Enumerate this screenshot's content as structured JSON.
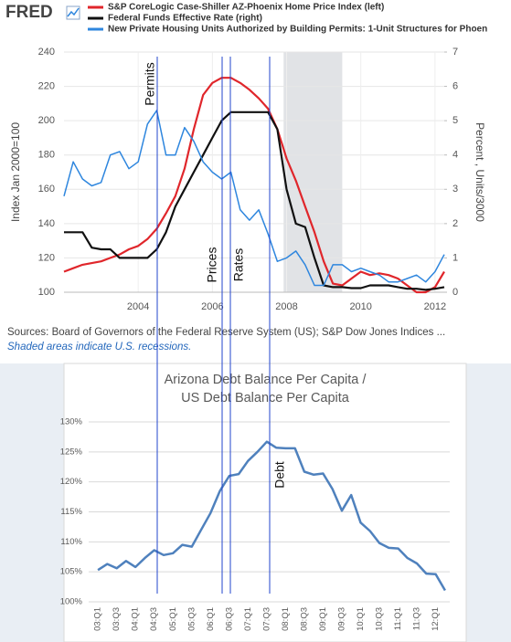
{
  "chart_data": [
    {
      "type": "line",
      "logo": "FRED",
      "y_label": "Index Jan 2000=100",
      "y2_label": "Percent , Units/3000",
      "source": "Sources: Board of Governors of the Federal Reserve System (US); S&P Dow Jones Indices ...",
      "note": "Shaded areas indicate U.S. recessions.",
      "annotations": [
        "Permits",
        "Prices",
        "Rates"
      ],
      "shaded": [
        {
          "start": 2007.92,
          "end": 2009.5
        }
      ],
      "x": [
        2002.0,
        2002.25,
        2002.5,
        2002.75,
        2003.0,
        2003.25,
        2003.5,
        2003.75,
        2004.0,
        2004.25,
        2004.5,
        2004.75,
        2005.0,
        2005.25,
        2005.5,
        2005.75,
        2006.0,
        2006.25,
        2006.5,
        2006.75,
        2007.0,
        2007.25,
        2007.5,
        2007.75,
        2008.0,
        2008.25,
        2008.5,
        2008.75,
        2009.0,
        2009.25,
        2009.5,
        2009.75,
        2010.0,
        2010.25,
        2010.5,
        2010.75,
        2011.0,
        2011.25,
        2011.5,
        2011.75,
        2012.0,
        2012.25
      ],
      "xlim": [
        2002,
        2012.25
      ],
      "xticks": [
        2004,
        2006,
        2008,
        2010,
        2012
      ],
      "ylim": [
        100,
        240
      ],
      "yticks": [
        100,
        120,
        140,
        160,
        180,
        200,
        220,
        240
      ],
      "y2lim": [
        0,
        7
      ],
      "y2ticks": [
        0,
        1,
        2,
        3,
        4,
        5,
        6,
        7
      ],
      "grid": true,
      "series": [
        {
          "name": "S&P CoreLogic Case-Shiller AZ-Phoenix Home Price Index (left)",
          "color": "#e0262b",
          "values": [
            112,
            114,
            116,
            117,
            118,
            120,
            122,
            125,
            127,
            131,
            137,
            146,
            156,
            172,
            195,
            215,
            222,
            225,
            225,
            222,
            218,
            213,
            207,
            195,
            178,
            165,
            150,
            135,
            118,
            105,
            104,
            108,
            112,
            110,
            111,
            110,
            108,
            104,
            100,
            100,
            103,
            112
          ]
        },
        {
          "name": "Federal Funds Effective Rate (right)",
          "color": "#111111",
          "axis": "y2",
          "values": [
            1.75,
            1.75,
            1.75,
            1.3,
            1.25,
            1.25,
            1.0,
            1.0,
            1.0,
            1.0,
            1.25,
            1.75,
            2.5,
            3.0,
            3.5,
            4.0,
            4.5,
            5.0,
            5.25,
            5.25,
            5.25,
            5.25,
            5.25,
            4.75,
            3.0,
            2.0,
            1.9,
            1.0,
            0.2,
            0.15,
            0.15,
            0.12,
            0.12,
            0.2,
            0.2,
            0.2,
            0.15,
            0.1,
            0.1,
            0.07,
            0.1,
            0.15
          ]
        },
        {
          "name": "New Private Housing Units Authorized by Building Permits: 1-Unit Structures for Phoen",
          "color": "#2e86de",
          "axis": "y2",
          "values": [
            2.8,
            3.8,
            3.3,
            3.1,
            3.2,
            4.0,
            4.1,
            3.6,
            3.8,
            4.9,
            5.3,
            4.0,
            4.0,
            4.8,
            4.4,
            3.8,
            3.5,
            3.3,
            3.5,
            2.4,
            2.1,
            2.4,
            1.7,
            0.9,
            1.0,
            1.2,
            0.8,
            0.2,
            0.2,
            0.8,
            0.8,
            0.6,
            0.7,
            0.6,
            0.5,
            0.3,
            0.3,
            0.4,
            0.5,
            0.3,
            0.6,
            1.1
          ]
        }
      ]
    },
    {
      "type": "line",
      "title": [
        "Arizona Debt Balance Per Capita /",
        "US Debt Balance Per Capita"
      ],
      "annotations": [
        "Debt"
      ],
      "categories": [
        "03:Q1",
        null,
        "03:Q3",
        null,
        "04:Q1",
        null,
        "04:Q3",
        null,
        "05:Q1",
        null,
        "05:Q3",
        null,
        "06:Q1",
        null,
        "06:Q3",
        null,
        "07:Q1",
        null,
        "07:Q3",
        null,
        "08:Q1",
        null,
        "08:Q3",
        null,
        "09:Q1",
        null,
        "09:Q3",
        null,
        "10:Q1",
        null,
        "10:Q3",
        null,
        "11:Q1",
        null,
        "11:Q3",
        null,
        "12:Q1",
        null
      ],
      "ylim": [
        100,
        130
      ],
      "yticks": [
        {
          "value": 100,
          "label": "100%"
        },
        {
          "value": 105,
          "label": "105%"
        },
        {
          "value": 110,
          "label": "110%"
        },
        {
          "value": 115,
          "label": "115%"
        },
        {
          "value": 120,
          "label": "120%"
        },
        {
          "value": 125,
          "label": "125%"
        },
        {
          "value": 130,
          "label": "130%"
        }
      ],
      "grid": true,
      "series": [
        {
          "color": "#4f81bd",
          "values": [
            105.3,
            106.3,
            105.6,
            106.8,
            105.8,
            107.3,
            108.6,
            107.8,
            108.1,
            109.5,
            109.2,
            112,
            114.8,
            118.5,
            121,
            121.3,
            123.5,
            125,
            126.7,
            125.7,
            125.6,
            125.6,
            121.7,
            121.2,
            121.4,
            118.8,
            115.2,
            117.8,
            113.2,
            111.8,
            109.8,
            109,
            108.9,
            107.3,
            106.4,
            104.7,
            104.6,
            101.9
          ]
        }
      ]
    }
  ]
}
